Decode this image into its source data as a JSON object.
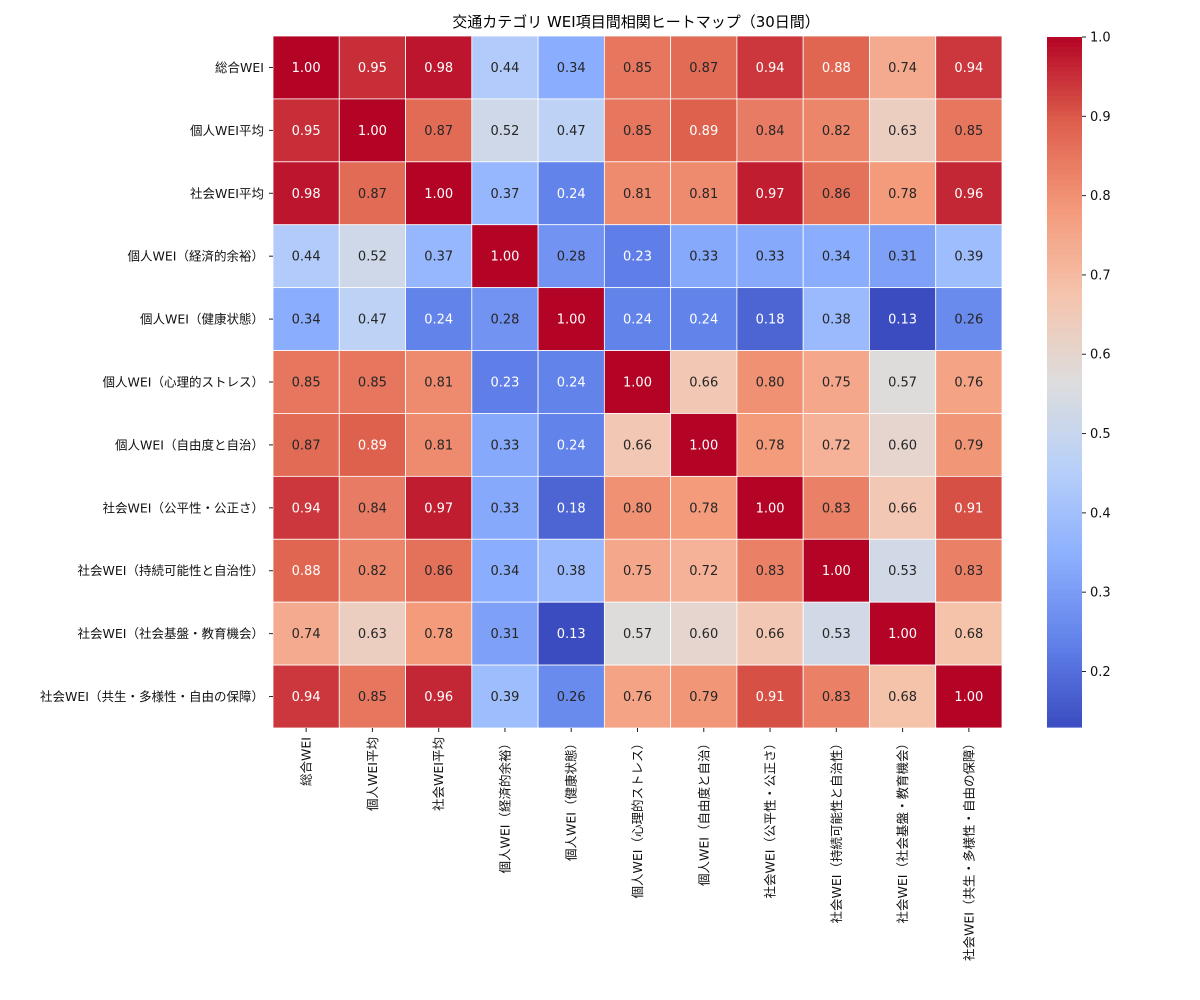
{
  "chart_data": {
    "type": "heatmap",
    "title": "交通カテゴリ WEI項目間相関ヒートマップ（30日間）",
    "xlabel": "",
    "ylabel": "",
    "labels": [
      "総合WEI",
      "個人WEI平均",
      "社会WEI平均",
      "個人WEI（経済的余裕）",
      "個人WEI（健康状態）",
      "個人WEI（心理的ストレス）",
      "個人WEI（自由度と自治）",
      "社会WEI（公平性・公正さ）",
      "社会WEI（持続可能性と自治性）",
      "社会WEI（社会基盤・教育機会）",
      "社会WEI（共生・多様性・自由の保障）"
    ],
    "matrix": [
      [
        1.0,
        0.95,
        0.98,
        0.44,
        0.34,
        0.85,
        0.87,
        0.94,
        0.88,
        0.74,
        0.94
      ],
      [
        0.95,
        1.0,
        0.87,
        0.52,
        0.47,
        0.85,
        0.89,
        0.84,
        0.82,
        0.63,
        0.85
      ],
      [
        0.98,
        0.87,
        1.0,
        0.37,
        0.24,
        0.81,
        0.81,
        0.97,
        0.86,
        0.78,
        0.96
      ],
      [
        0.44,
        0.52,
        0.37,
        1.0,
        0.28,
        0.23,
        0.33,
        0.33,
        0.34,
        0.31,
        0.39
      ],
      [
        0.34,
        0.47,
        0.24,
        0.28,
        1.0,
        0.24,
        0.24,
        0.18,
        0.38,
        0.13,
        0.26
      ],
      [
        0.85,
        0.85,
        0.81,
        0.23,
        0.24,
        1.0,
        0.66,
        0.8,
        0.75,
        0.57,
        0.76
      ],
      [
        0.87,
        0.89,
        0.81,
        0.33,
        0.24,
        0.66,
        1.0,
        0.78,
        0.72,
        0.6,
        0.79
      ],
      [
        0.94,
        0.84,
        0.97,
        0.33,
        0.18,
        0.8,
        0.78,
        1.0,
        0.83,
        0.66,
        0.91
      ],
      [
        0.88,
        0.82,
        0.86,
        0.34,
        0.38,
        0.75,
        0.72,
        0.83,
        1.0,
        0.53,
        0.83
      ],
      [
        0.74,
        0.63,
        0.78,
        0.31,
        0.13,
        0.57,
        0.6,
        0.66,
        0.53,
        1.0,
        0.68
      ],
      [
        0.94,
        0.85,
        0.96,
        0.39,
        0.26,
        0.76,
        0.79,
        0.91,
        0.83,
        0.68,
        1.0
      ]
    ],
    "value_format": "0.00",
    "colormap": "coolwarm",
    "color_range": [
      0.13,
      1.0
    ],
    "colorbar_ticks": [
      0.2,
      0.3,
      0.4,
      0.5,
      0.6,
      0.7,
      0.8,
      0.9,
      1.0
    ],
    "colorbar_tick_labels": [
      "0.2",
      "0.3",
      "0.4",
      "0.5",
      "0.6",
      "0.7",
      "0.8",
      "0.9",
      "1.0"
    ],
    "colorbar_placement": "right",
    "cell_border_color": "#ffffff",
    "grid": false
  }
}
